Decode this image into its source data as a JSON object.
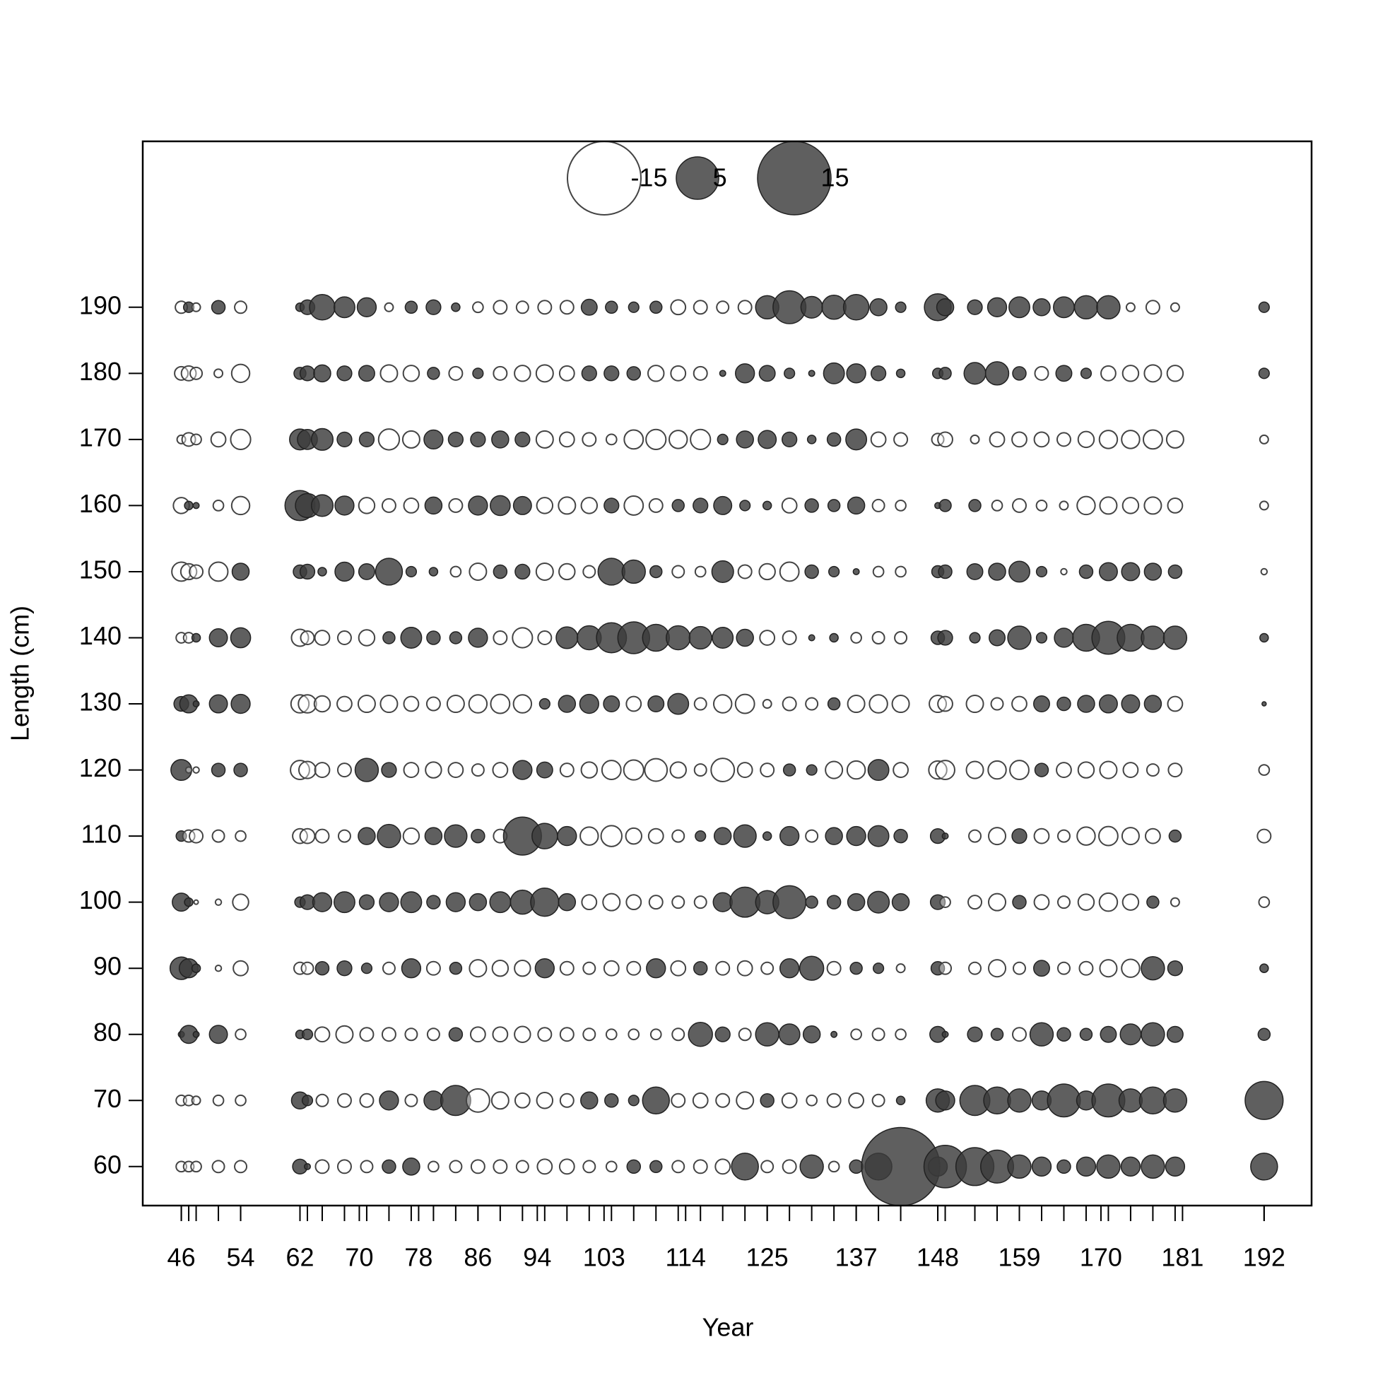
{
  "chart_data": {
    "type": "bubble",
    "x_label": "Year",
    "y_label": "Length (cm)",
    "xlim": [
      40.8,
      198.4
    ],
    "ylim": [
      54.1,
      215.1
    ],
    "xticks": [
      46,
      54,
      62,
      70,
      78,
      86,
      94,
      103,
      114,
      125,
      137,
      148,
      159,
      170,
      181,
      192
    ],
    "yticks": [
      60,
      70,
      80,
      90,
      100,
      110,
      120,
      130,
      140,
      150,
      160,
      170,
      180,
      190
    ],
    "positive_color": "#3c3c3c",
    "negative_color": "#ffffff",
    "legend": {
      "values": [
        -15,
        5,
        15
      ],
      "position": "top"
    },
    "x": [
      46,
      47,
      48,
      51,
      54,
      62,
      63,
      65,
      68,
      71,
      74,
      77,
      80,
      83,
      86,
      89,
      92,
      95,
      98,
      101,
      104,
      107,
      110,
      113,
      116,
      119,
      122,
      125,
      128,
      131,
      134,
      137,
      140,
      143,
      148,
      149,
      153,
      156,
      159,
      162,
      165,
      168,
      171,
      174,
      177,
      180,
      192
    ],
    "y": [
      60,
      70,
      80,
      90,
      100,
      110,
      120,
      130,
      140,
      150,
      160,
      170,
      180,
      190
    ],
    "values": [
      [
        -0.3,
        -0.3,
        -0.3,
        -0.4,
        -0.4,
        0.6,
        0.1,
        -0.5,
        -0.5,
        -0.4,
        0.5,
        0.8,
        -0.3,
        -0.4,
        -0.5,
        -0.5,
        -0.4,
        -0.6,
        -0.6,
        -0.4,
        -0.3,
        0.5,
        0.4,
        -0.4,
        -0.5,
        -0.6,
        2,
        -0.4,
        -0.5,
        1.5,
        -0.3,
        0.5,
        2,
        17,
        1,
        5,
        4,
        3,
        1.5,
        1,
        0.5,
        1,
        1.5,
        1,
        1.5,
        1,
        2
      ],
      [
        -0.3,
        -0.3,
        -0.2,
        -0.3,
        -0.3,
        0.8,
        0.3,
        -0.4,
        -0.5,
        -0.5,
        1,
        -0.4,
        1,
        2.5,
        -1.5,
        -0.8,
        -0.6,
        -0.7,
        -0.5,
        0.8,
        0.5,
        0.3,
        2,
        -0.5,
        -0.6,
        -0.5,
        -0.8,
        0.5,
        -0.6,
        -0.3,
        -0.5,
        -0.6,
        -0.4,
        0.2,
        1.5,
        1,
        2.5,
        2,
        1.5,
        1,
        3,
        1,
        3,
        1.5,
        2,
        1.5,
        4
      ],
      [
        0.1,
        0.9,
        0.1,
        0.9,
        -0.3,
        0.2,
        0.3,
        -0.6,
        -0.8,
        -0.5,
        -0.5,
        -0.4,
        -0.4,
        0.5,
        -0.6,
        -0.6,
        -0.7,
        -0.5,
        -0.5,
        -0.4,
        -0.3,
        -0.3,
        -0.3,
        -0.4,
        1.6,
        0.6,
        -0.4,
        1.5,
        1.2,
        0.8,
        0.1,
        -0.3,
        -0.4,
        -0.3,
        0.7,
        0.1,
        0.6,
        0.4,
        -0.5,
        1.5,
        0.5,
        0.4,
        0.7,
        1.2,
        1.5,
        0.7,
        0.4
      ],
      [
        1.4,
        1,
        0.2,
        -0.1,
        -0.6,
        -0.4,
        -0.4,
        0.5,
        0.6,
        0.3,
        -0.4,
        1,
        -0.5,
        0.4,
        -0.8,
        -0.7,
        -0.7,
        1,
        -0.5,
        -0.4,
        -0.6,
        -0.5,
        1,
        -0.6,
        0.5,
        -0.5,
        -0.6,
        -0.4,
        1,
        1.6,
        -0.5,
        0.4,
        0.3,
        -0.2,
        0.5,
        -0.4,
        -0.4,
        -0.8,
        -0.4,
        0.7,
        -0.4,
        -0.5,
        -0.8,
        -0.9,
        1.5,
        0.6,
        0.2
      ],
      [
        0.9,
        0.2,
        -0.05,
        -0.1,
        -0.7,
        0.3,
        0.6,
        1,
        1.2,
        0.6,
        1,
        1.2,
        0.5,
        1,
        0.8,
        1.2,
        1.6,
        2.2,
        0.8,
        -0.6,
        -0.8,
        -0.6,
        -0.5,
        -0.4,
        -0.4,
        1,
        2.5,
        1.5,
        3,
        0.4,
        0.5,
        0.8,
        1.3,
        0.8,
        0.6,
        -0.3,
        -0.5,
        -0.8,
        0.5,
        -0.6,
        -0.4,
        -0.7,
        -0.9,
        -0.7,
        0.4,
        -0.2,
        -0.3
      ],
      [
        0.3,
        -0.4,
        -0.5,
        -0.4,
        -0.3,
        -0.6,
        -0.6,
        -0.5,
        -0.4,
        0.8,
        1.5,
        -0.7,
        0.8,
        1.4,
        0.5,
        -0.5,
        4,
        1.8,
        1,
        -0.9,
        -1.2,
        -0.7,
        -0.6,
        -0.4,
        0.3,
        0.8,
        1.4,
        0.2,
        1,
        -0.4,
        0.8,
        1,
        1.2,
        0.5,
        0.6,
        0.1,
        -0.4,
        -0.8,
        0.6,
        -0.6,
        -0.4,
        -0.9,
        -1,
        -0.8,
        -0.6,
        0.4,
        -0.5
      ],
      [
        1.2,
        -0.1,
        -0.1,
        0.5,
        0.5,
        -1,
        -0.8,
        -0.6,
        -0.5,
        1.5,
        0.6,
        -0.6,
        -0.7,
        -0.6,
        -0.4,
        -0.6,
        1,
        0.7,
        -0.5,
        -0.7,
        -1,
        -1.1,
        -1.4,
        -0.7,
        -0.4,
        -1.5,
        -0.6,
        -0.5,
        0.4,
        0.3,
        -0.8,
        -0.9,
        1.2,
        -0.6,
        -0.9,
        -1,
        -0.8,
        -0.9,
        -1,
        0.5,
        -0.6,
        -0.7,
        -0.8,
        -0.6,
        -0.4,
        -0.5,
        -0.3
      ],
      [
        0.6,
        0.9,
        0.1,
        0.9,
        1,
        -0.9,
        -0.9,
        -0.7,
        -0.6,
        -0.8,
        -0.8,
        -0.6,
        -0.5,
        -0.8,
        -0.9,
        -1,
        -0.9,
        0.3,
        0.8,
        1,
        0.7,
        -0.6,
        0.7,
        1.2,
        -0.4,
        -0.9,
        -1,
        -0.2,
        -0.5,
        -0.4,
        0.4,
        -0.8,
        -0.9,
        -0.8,
        -0.8,
        -0.6,
        -0.8,
        -0.4,
        -0.6,
        0.7,
        0.5,
        0.8,
        0.9,
        0.9,
        0.8,
        -0.6,
        0.05
      ],
      [
        -0.3,
        -0.3,
        0.2,
        0.9,
        1.1,
        -0.8,
        -0.5,
        -0.6,
        -0.5,
        -0.7,
        0.4,
        1.2,
        0.5,
        0.4,
        1,
        -0.5,
        -1.1,
        -0.5,
        1.3,
        1.6,
        2.5,
        2.8,
        2,
        1.6,
        1.4,
        1.2,
        0.8,
        -0.6,
        -0.5,
        0.1,
        0.2,
        -0.3,
        -0.4,
        -0.4,
        0.5,
        0.6,
        0.3,
        0.7,
        1.5,
        0.3,
        1,
        2,
        3,
        2,
        1.5,
        1.5,
        0.2
      ],
      [
        -1,
        -0.7,
        -0.5,
        -1,
        0.8,
        0.5,
        0.6,
        0.2,
        1,
        0.7,
        2,
        0.3,
        0.2,
        -0.3,
        -0.8,
        0.5,
        0.6,
        -0.8,
        -0.7,
        -0.4,
        2,
        1.5,
        0.4,
        -0.4,
        -0.3,
        1.3,
        -0.5,
        -0.7,
        -1,
        0.5,
        0.3,
        0.1,
        -0.3,
        -0.3,
        0.4,
        0.5,
        0.7,
        0.8,
        1.2,
        0.3,
        -0.1,
        0.5,
        0.9,
        0.9,
        0.8,
        0.5,
        -0.1
      ],
      [
        -0.7,
        0.2,
        0.1,
        -0.3,
        -0.9,
        2.5,
        1.6,
        1.3,
        1,
        -0.7,
        -0.5,
        -0.6,
        0.8,
        -0.5,
        1,
        1.1,
        0.9,
        -0.7,
        -0.8,
        -0.7,
        0.6,
        -1,
        -0.5,
        0.4,
        0.6,
        0.9,
        0.3,
        0.2,
        -0.6,
        0.5,
        0.4,
        0.8,
        -0.4,
        -0.3,
        0.1,
        0.4,
        0.4,
        -0.3,
        -0.5,
        -0.3,
        -0.2,
        -0.9,
        -0.8,
        -0.7,
        -0.8,
        -0.6,
        -0.2
      ],
      [
        -0.2,
        -0.5,
        -0.3,
        -0.6,
        -1.1,
        1.2,
        1.1,
        1.3,
        0.6,
        0.6,
        -1.2,
        -0.8,
        1,
        0.6,
        0.6,
        0.8,
        0.6,
        -0.8,
        -0.6,
        -0.5,
        -0.3,
        -1,
        -1.1,
        -0.9,
        -1.1,
        0.3,
        0.8,
        0.9,
        0.6,
        0.2,
        0.5,
        1.2,
        -0.6,
        -0.5,
        -0.4,
        -0.6,
        -0.2,
        -0.6,
        -0.6,
        -0.6,
        -0.5,
        -0.7,
        -0.9,
        -0.9,
        -1,
        -0.8,
        -0.2
      ],
      [
        -0.5,
        -0.6,
        -0.4,
        -0.2,
        -0.9,
        0.4,
        0.6,
        0.8,
        0.6,
        0.7,
        -0.8,
        -0.7,
        0.4,
        -0.5,
        0.3,
        -0.5,
        -0.7,
        -0.8,
        -0.6,
        0.6,
        0.6,
        0.5,
        -0.7,
        -0.6,
        -0.5,
        0.1,
        1,
        0.7,
        0.3,
        0.1,
        1.2,
        1,
        0.6,
        0.2,
        0.3,
        0.4,
        1.3,
        1.5,
        0.5,
        -0.5,
        0.7,
        0.3,
        -0.6,
        -0.7,
        -0.8,
        -0.7,
        0.3
      ],
      [
        -0.4,
        0.3,
        -0.2,
        0.5,
        -0.4,
        0.2,
        0.6,
        1.8,
        1.2,
        1,
        -0.2,
        0.4,
        0.6,
        0.2,
        -0.3,
        -0.5,
        -0.4,
        -0.5,
        -0.5,
        0.7,
        0.4,
        0.3,
        0.4,
        -0.6,
        -0.5,
        -0.4,
        -0.5,
        1.5,
        3,
        1.3,
        1.6,
        1.8,
        0.8,
        0.3,
        2,
        0.8,
        0.6,
        1,
        1.2,
        0.8,
        1.2,
        1.5,
        1.5,
        -0.2,
        -0.5,
        -0.2,
        0.3
      ]
    ]
  }
}
